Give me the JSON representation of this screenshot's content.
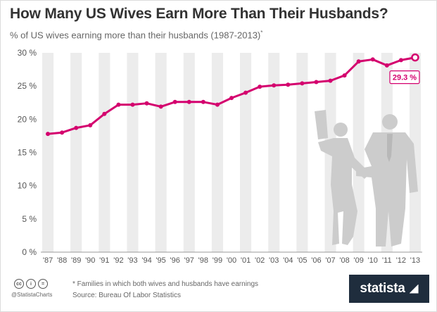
{
  "header": {
    "title": "How Many US Wives Earn More Than Their Husbands?",
    "subtitle": "% of US wives earning more than their husbands (1987-2013)",
    "subtitle_marker": "*"
  },
  "chart_data": {
    "type": "line",
    "categories": [
      "'87",
      "'88",
      "'89",
      "'90",
      "'91",
      "'92",
      "'93",
      "'94",
      "'95",
      "'96",
      "'97",
      "'98",
      "'99",
      "'00",
      "'01",
      "'02",
      "'03",
      "'04",
      "'05",
      "'06",
      "'07",
      "'08",
      "'09",
      "'10",
      "'11",
      "'12",
      "'13"
    ],
    "series": [
      {
        "values": [
          17.8,
          18.0,
          18.7,
          19.1,
          20.8,
          22.2,
          22.2,
          22.4,
          21.9,
          22.6,
          22.6,
          22.6,
          22.2,
          23.2,
          24.0,
          24.9,
          25.1,
          25.2,
          25.4,
          25.6,
          25.8,
          26.6,
          28.7,
          29.0,
          28.1,
          28.9,
          29.3
        ],
        "color": "#d4006e"
      }
    ],
    "ylim": [
      0,
      30
    ],
    "yticks": [
      0,
      5,
      10,
      15,
      20,
      25,
      30
    ],
    "ytick_labels": [
      "0 %",
      "5 %",
      "10 %",
      "15 %",
      "20 %",
      "25 %",
      "30 %"
    ],
    "annotation": {
      "label": "29.3 %",
      "category": "'13",
      "value": 29.3
    },
    "xlabel": "",
    "ylabel": "",
    "grid": "alternating vertical stripes",
    "stripe_color": "#ececec",
    "silhouette_color": "#cccccc"
  },
  "footer": {
    "footnote": "* Families in which both wives and husbands have earnings",
    "source": "Source: Bureau Of Labor Statistics",
    "handle": "@StatistaCharts",
    "license_icons": [
      "cc-icon",
      "attribution-icon",
      "no-derivatives-icon"
    ],
    "brand": "statista"
  }
}
